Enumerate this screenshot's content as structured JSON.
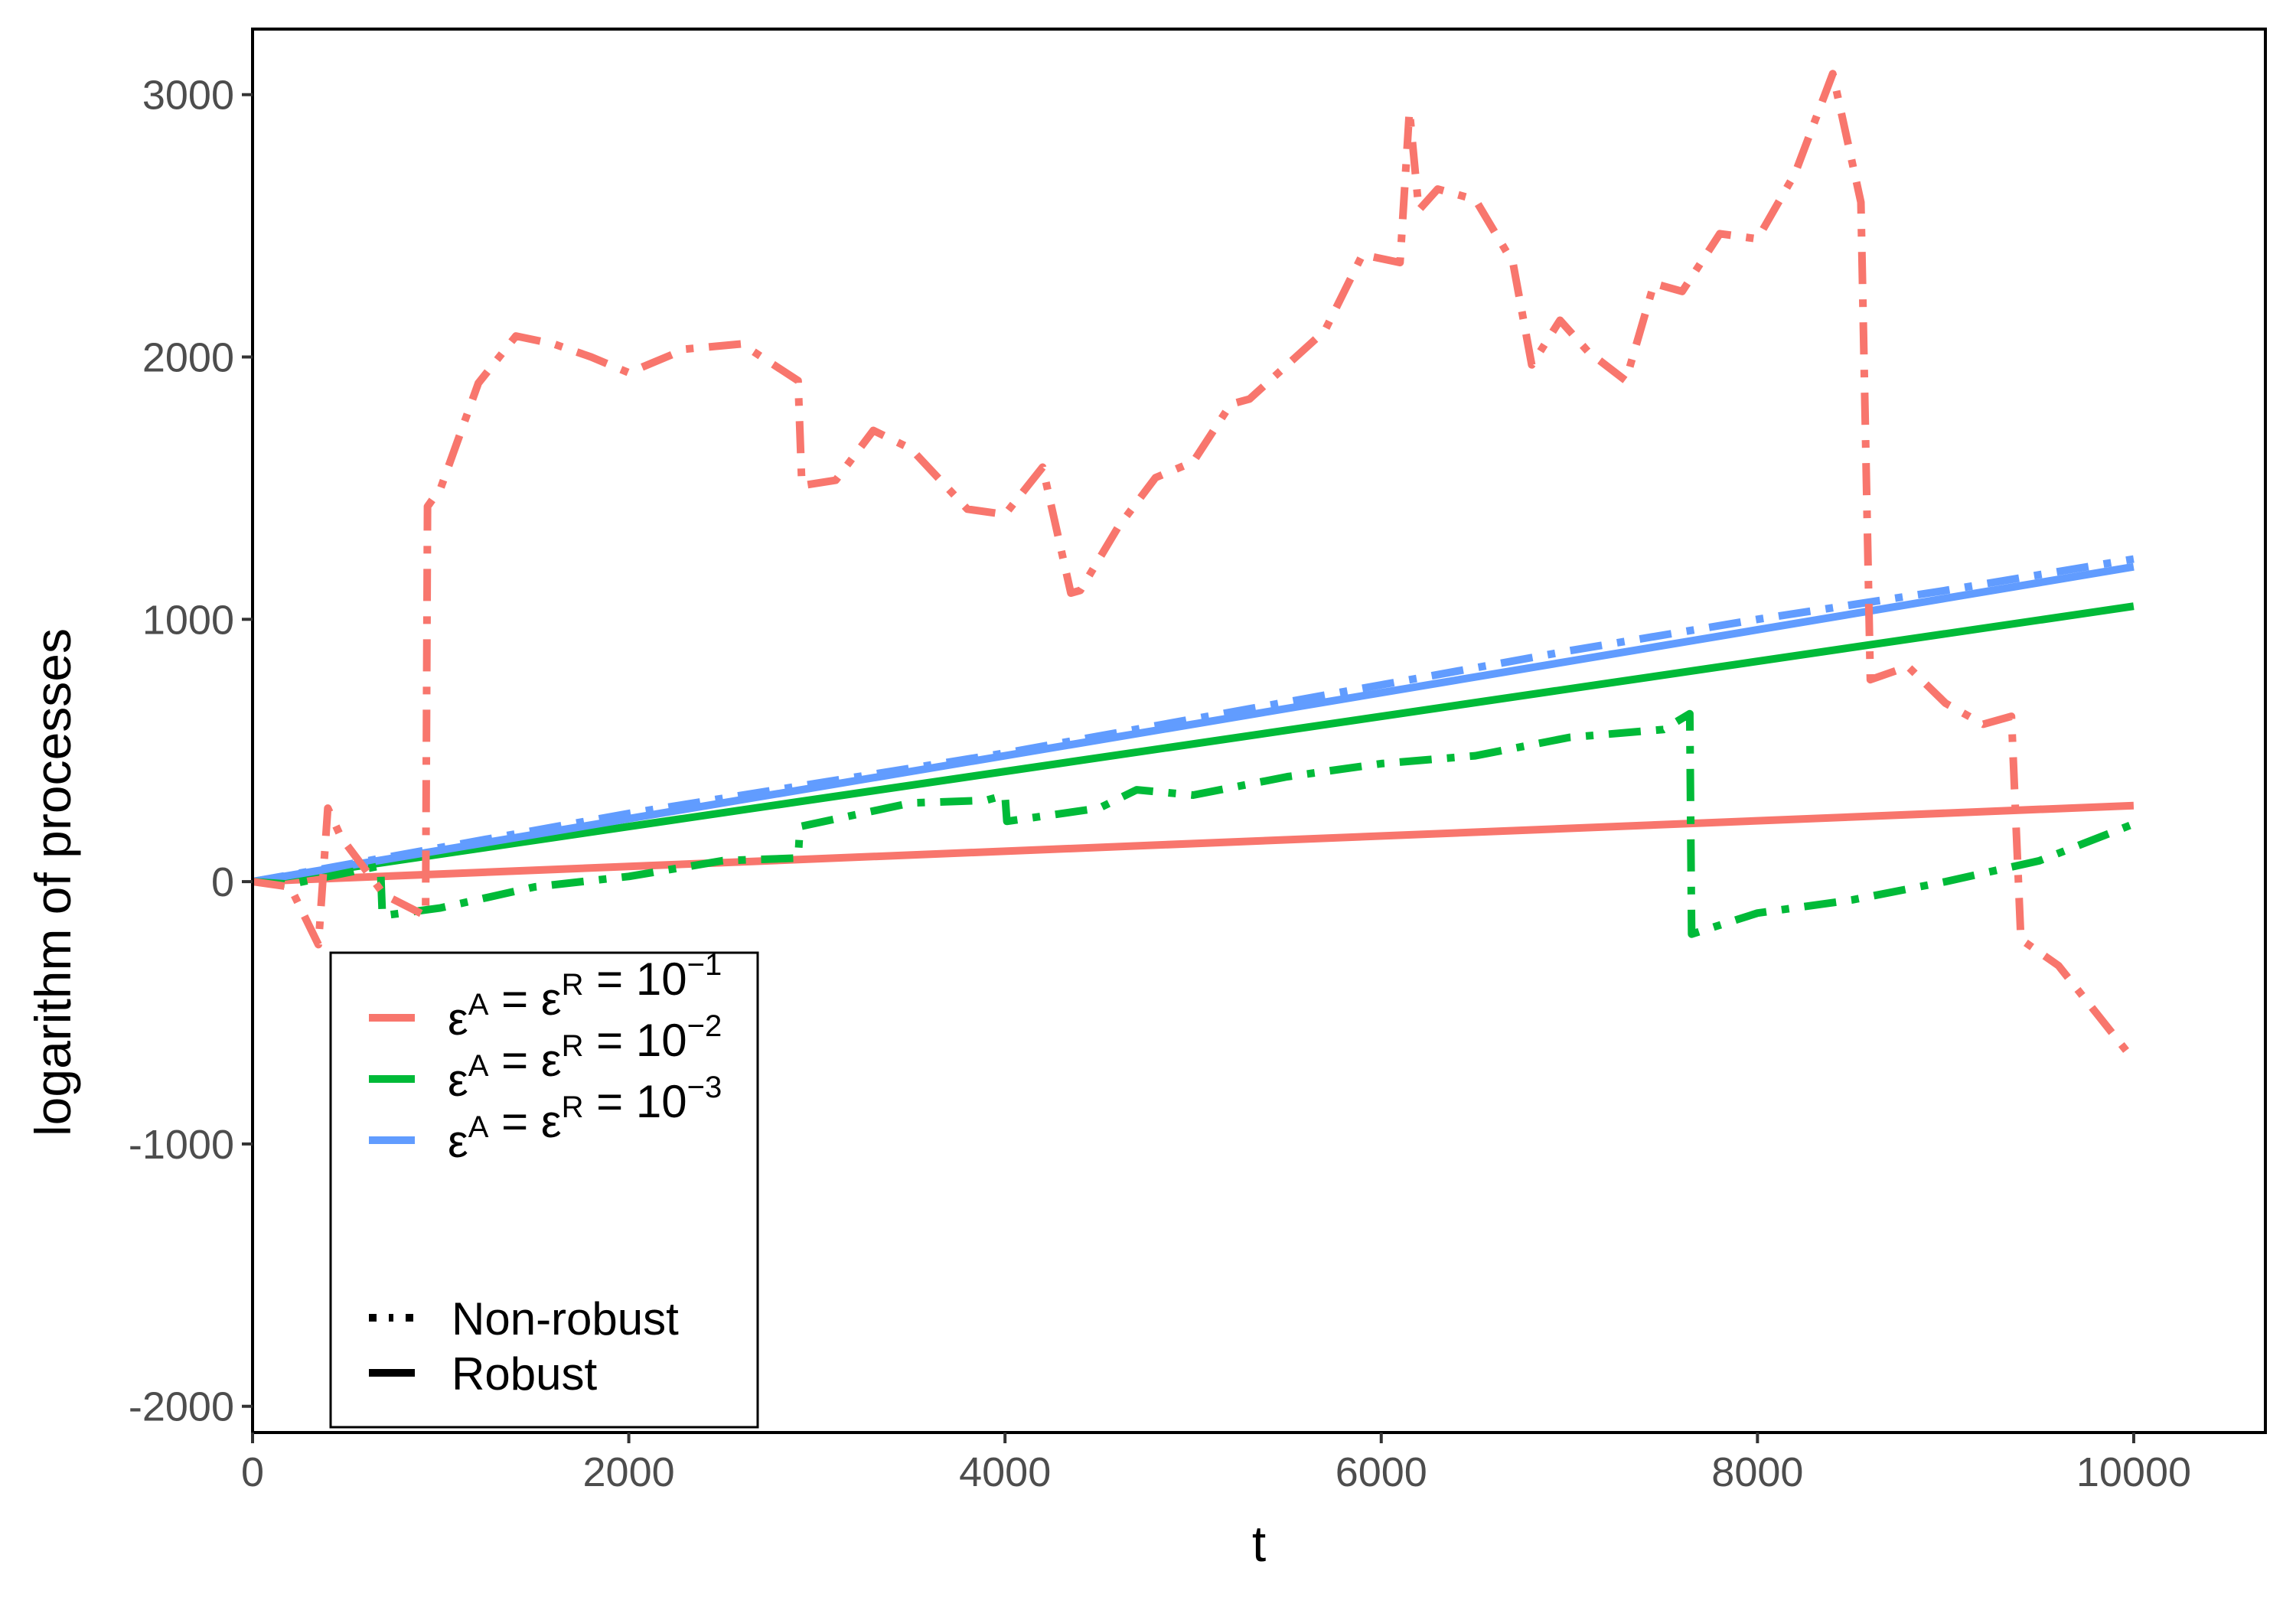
{
  "chart_data": {
    "type": "line",
    "xlabel": "t",
    "ylabel": "logarithm of processes",
    "xlim": [
      0,
      10700
    ],
    "ylim": [
      -2100,
      3250
    ],
    "x_ticks": [
      0,
      2000,
      4000,
      6000,
      8000,
      10000
    ],
    "y_ticks": [
      -2000,
      -1000,
      0,
      1000,
      2000,
      3000
    ],
    "x_tick_labels": [
      "0",
      "2000",
      "4000",
      "6000",
      "8000",
      "10000"
    ],
    "y_tick_labels": [
      "-2000",
      "-1000",
      "0",
      "1000",
      "2000",
      "3000"
    ],
    "grid": false,
    "legend_position": "bottom-left",
    "color_legend": [
      {
        "color": "#F8766D",
        "base": "ε",
        "sup1": "A",
        "eq1": " = ε",
        "sup2": "R",
        "eq2": " = 10",
        "sup3": "−1"
      },
      {
        "color": "#00BA38",
        "base": "ε",
        "sup1": "A",
        "eq1": " = ε",
        "sup2": "R",
        "eq2": " = 10",
        "sup3": "−2"
      },
      {
        "color": "#619CFF",
        "base": "ε",
        "sup1": "A",
        "eq1": " = ε",
        "sup2": "R",
        "eq2": " = 10",
        "sup3": "−3"
      }
    ],
    "linetype_legend": [
      {
        "label": "Non-robust",
        "style": "dotdash"
      },
      {
        "label": "Robust",
        "style": "solid"
      }
    ],
    "series": [
      {
        "color": "#F8766D",
        "style": "solid",
        "x": [
          0,
          10000
        ],
        "y": [
          0,
          290
        ]
      },
      {
        "color": "#00BA38",
        "style": "solid",
        "x": [
          0,
          10000
        ],
        "y": [
          0,
          1050
        ]
      },
      {
        "color": "#619CFF",
        "style": "solid",
        "x": [
          0,
          10000
        ],
        "y": [
          0,
          1200
        ]
      },
      {
        "color": "#619CFF",
        "style": "dotdash",
        "x": [
          0,
          2000,
          4000,
          6000,
          7000,
          8000,
          9000,
          10000
        ],
        "y": [
          0,
          260,
          490,
          750,
          880,
          1000,
          1110,
          1230
        ]
      },
      {
        "color": "#00BA38",
        "style": "dotdash",
        "x": [
          0,
          200,
          680,
          690,
          1000,
          1500,
          2000,
          2500,
          2900,
          2910,
          3500,
          3900,
          4000,
          4010,
          4500,
          4700,
          5000,
          5500,
          6000,
          6500,
          7000,
          7500,
          7640,
          7650,
          8000,
          8500,
          9000,
          9500,
          10000
        ],
        "y": [
          0,
          -10,
          60,
          -130,
          -100,
          -20,
          20,
          80,
          90,
          210,
          300,
          310,
          330,
          230,
          280,
          350,
          330,
          400,
          450,
          480,
          550,
          580,
          640,
          -200,
          -120,
          -70,
          0,
          80,
          220
        ]
      },
      {
        "color": "#F8766D",
        "style": "dotdash",
        "x": [
          0,
          200,
          350,
          400,
          470,
          700,
          920,
          930,
          1000,
          1200,
          1400,
          1600,
          1800,
          2000,
          2300,
          2600,
          2900,
          2920,
          3100,
          3300,
          3500,
          3800,
          4000,
          4200,
          4350,
          4400,
          4600,
          4800,
          5000,
          5200,
          5300,
          5500,
          5700,
          5900,
          6100,
          6150,
          6200,
          6300,
          6500,
          6700,
          6800,
          6950,
          7100,
          7300,
          7450,
          7600,
          7800,
          8000,
          8200,
          8400,
          8550,
          8600,
          8800,
          9000,
          9200,
          9350,
          9400,
          9600,
          9800,
          10000
        ],
        "y": [
          0,
          -20,
          -240,
          280,
          170,
          -50,
          -130,
          1430,
          1500,
          1900,
          2080,
          2050,
          2000,
          1940,
          2030,
          2050,
          1910,
          1510,
          1530,
          1720,
          1650,
          1420,
          1400,
          1580,
          1100,
          1110,
          1350,
          1540,
          1600,
          1820,
          1840,
          1970,
          2100,
          2390,
          2360,
          2940,
          2560,
          2640,
          2600,
          2360,
          1970,
          2140,
          2020,
          1910,
          2280,
          2250,
          2470,
          2450,
          2700,
          3080,
          2590,
          770,
          820,
          680,
          600,
          630,
          -220,
          -320,
          -500,
          -680
        ]
      }
    ]
  }
}
